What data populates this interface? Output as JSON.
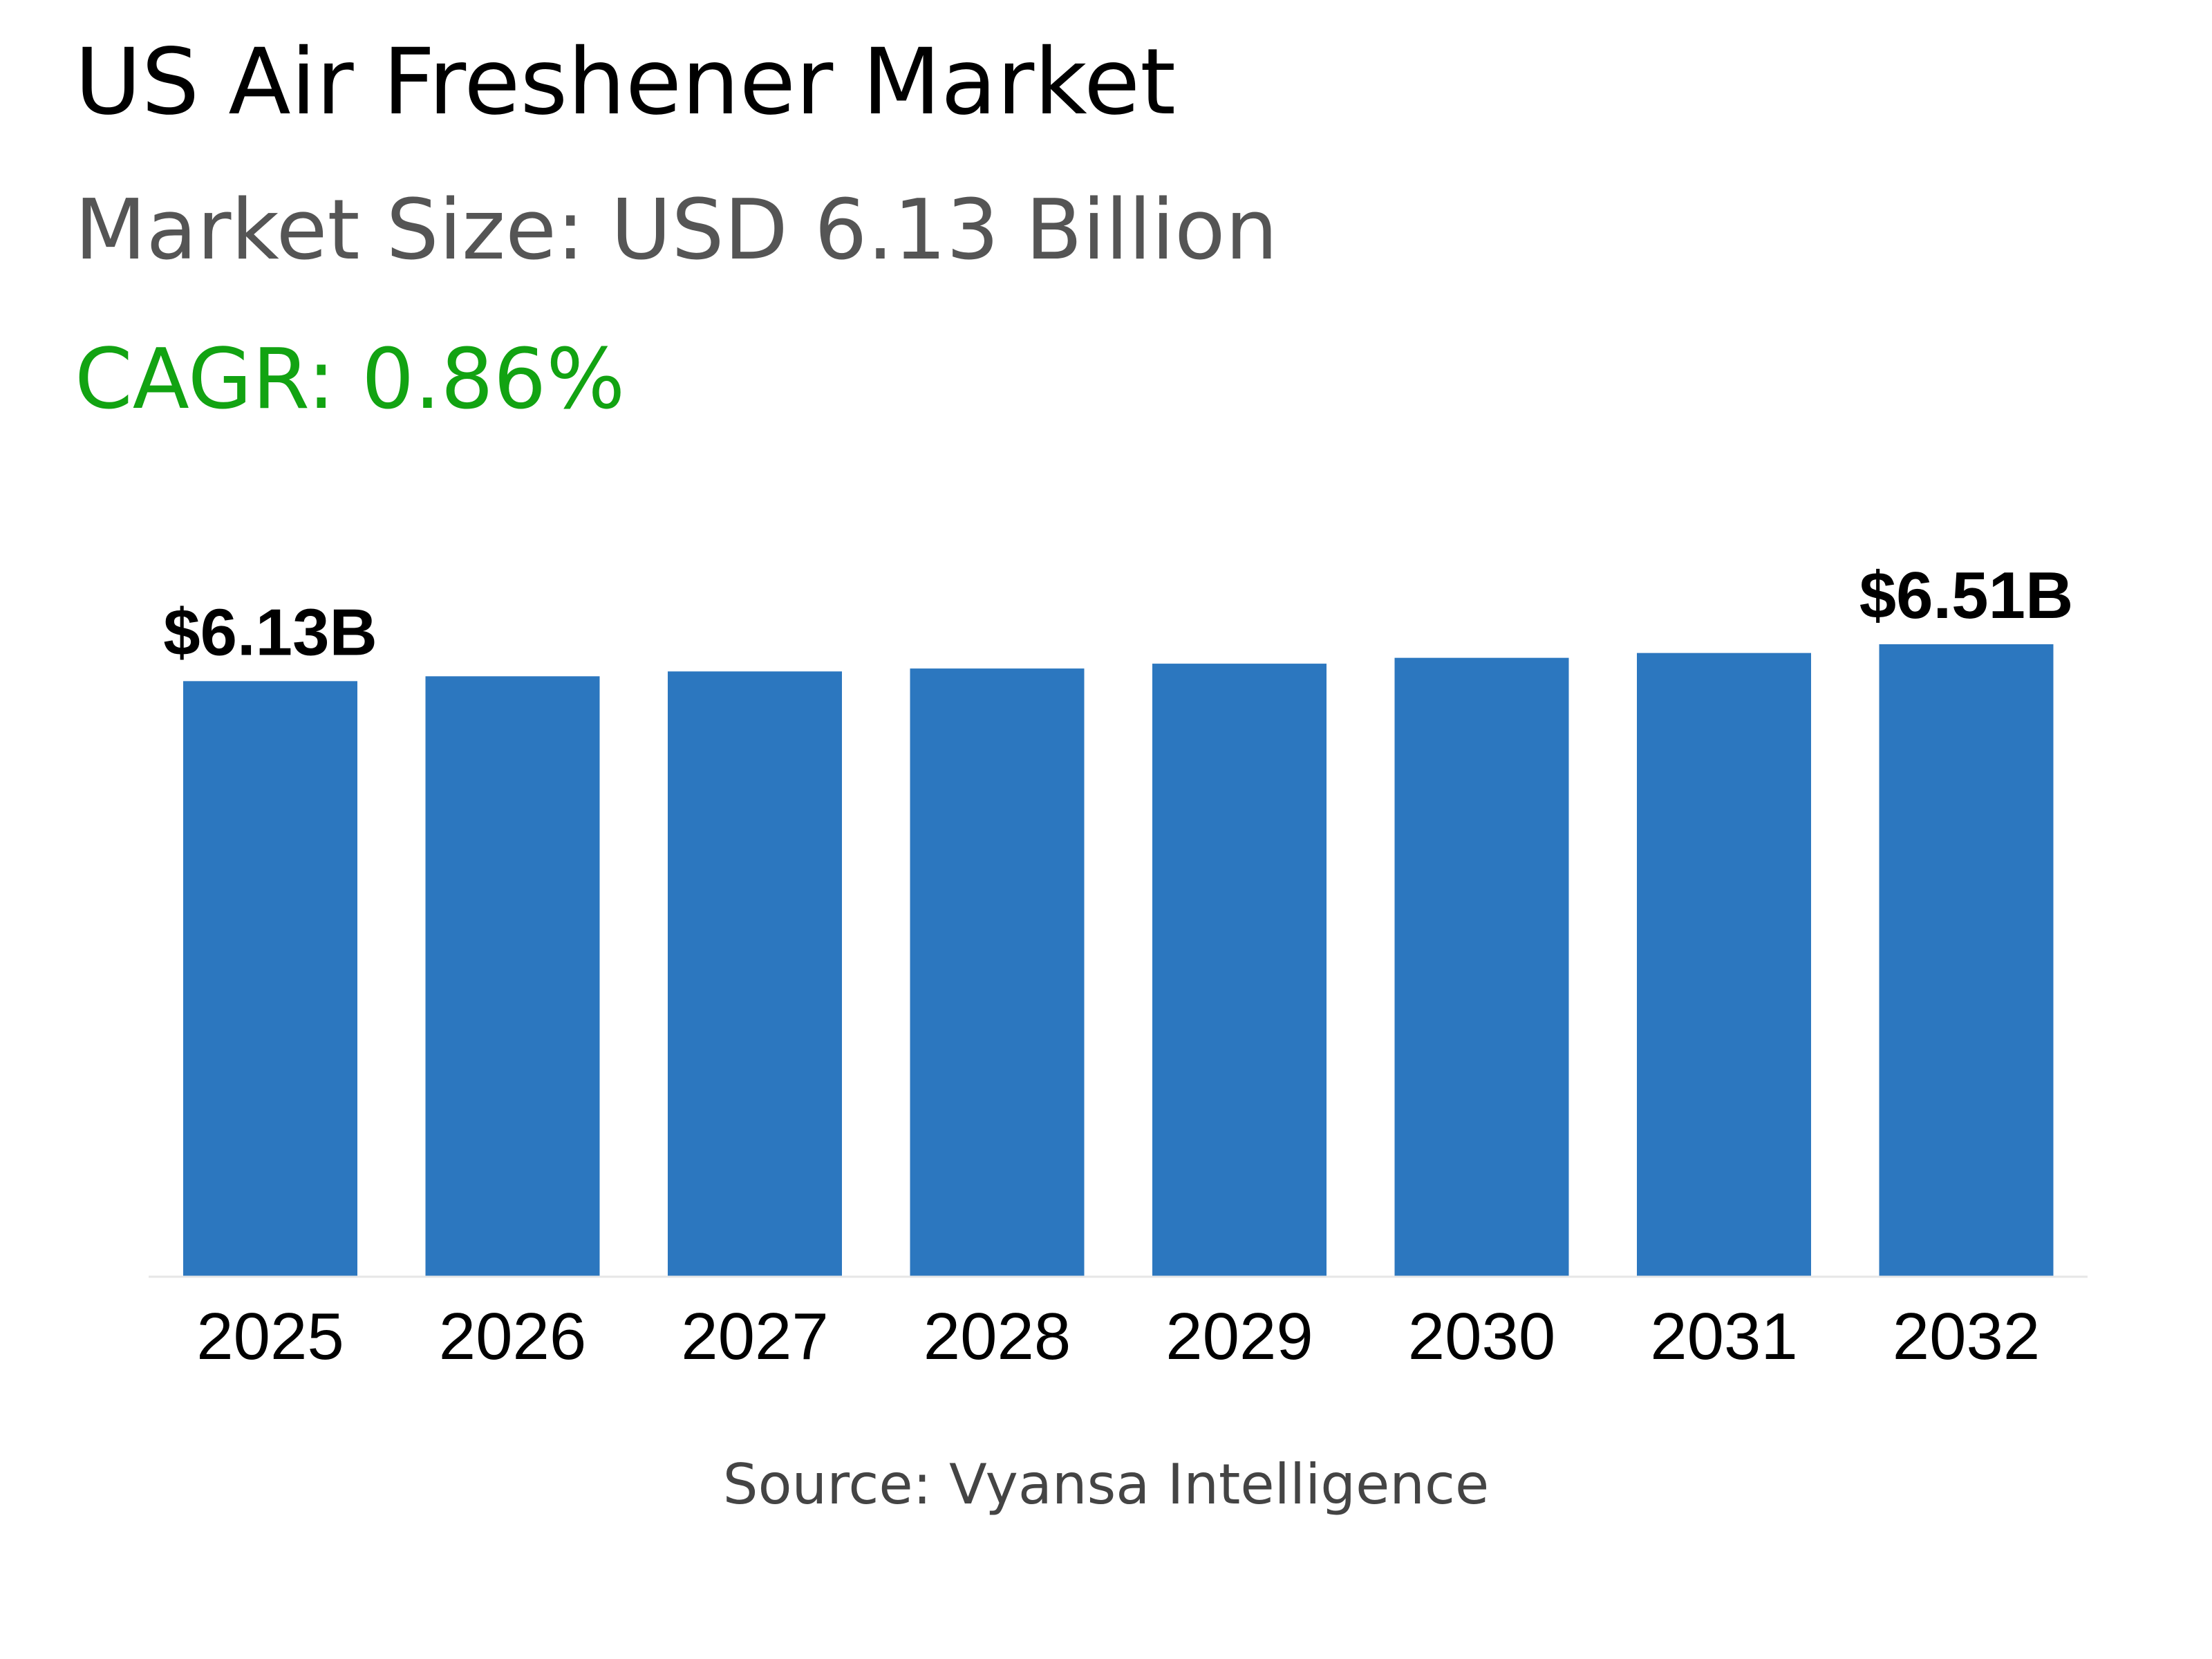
{
  "header": {
    "title": "US Air Freshener Market",
    "market_size": "Market Size: USD 6.13 Billion",
    "cagr": "CAGR: 0.86%"
  },
  "footer": {
    "source": "Source: Vyansa Intelligence"
  },
  "colors": {
    "bar": "#2c77bf",
    "cagr": "#12a312",
    "subtitle": "#555555",
    "axis": "#e6e6e6"
  },
  "chart_data": {
    "type": "bar",
    "categories": [
      "2025",
      "2026",
      "2027",
      "2028",
      "2029",
      "2030",
      "2031",
      "2032"
    ],
    "values": [
      6.13,
      6.18,
      6.23,
      6.26,
      6.31,
      6.37,
      6.42,
      6.51
    ],
    "data_labels": [
      {
        "index": 0,
        "text": "$6.13B"
      },
      {
        "index": 7,
        "text": "$6.51B"
      }
    ],
    "ylim": [
      0,
      6.51
    ],
    "grid": false,
    "legend": "none"
  }
}
